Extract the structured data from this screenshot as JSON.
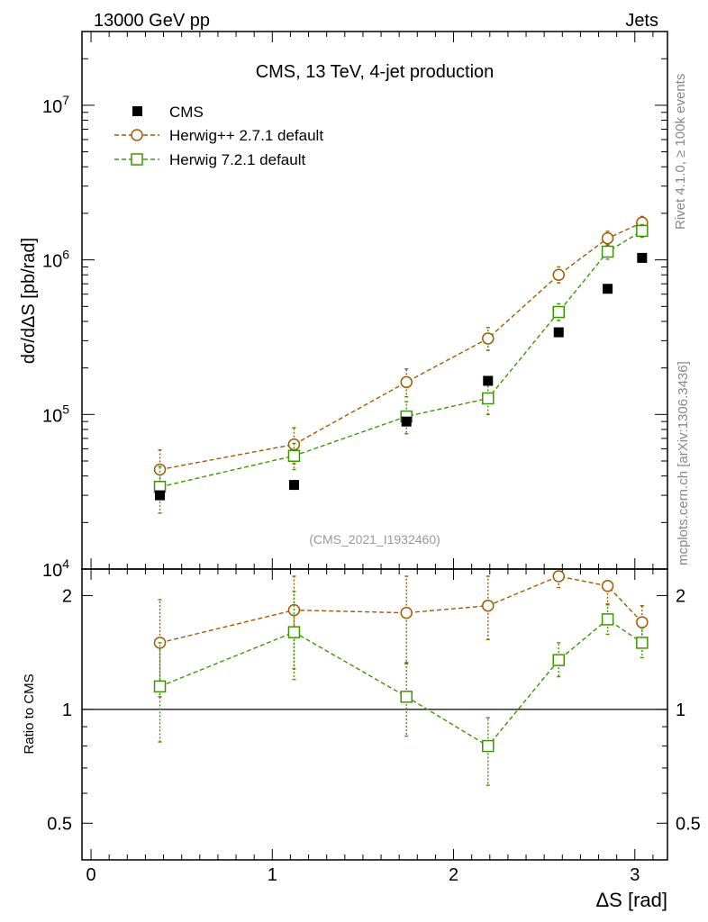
{
  "header": {
    "left": "13000 GeV pp",
    "right": "Jets"
  },
  "side_labels": {
    "rivet": "Rivet 4.1.0, ≥ 100k events",
    "mcplots": "mcplots.cern.ch [arXiv:1306.3436]"
  },
  "colors": {
    "cms": "#000000",
    "herwig_pp": "#a05a00",
    "herwig7": "#3c9600",
    "axis": "#000000",
    "watermark": "#999999",
    "side_text": "#888888"
  },
  "chart_data": [
    {
      "type": "line",
      "panel": "main",
      "title": "CMS, 13 TeV, 4-jet production",
      "watermark": "(CMS_2021_I1932460)",
      "xlabel": "",
      "ylabel": "dσ/dΔS [pb/rad]",
      "xlim": [
        -0.05,
        3.18
      ],
      "ylim": [
        10000,
        30000000
      ],
      "yscale": "log",
      "x_ticks": [
        "0",
        "1",
        "2",
        "3"
      ],
      "y_tick_labels": [
        {
          "value": 10000,
          "base": "10",
          "exp": "4"
        },
        {
          "value": 100000,
          "base": "10",
          "exp": "5"
        },
        {
          "value": 1000000,
          "base": "10",
          "exp": "6"
        },
        {
          "value": 10000000,
          "base": "10",
          "exp": "7"
        }
      ],
      "legend": [
        "CMS",
        "Herwig++ 2.7.1 default",
        "Herwig 7.2.1 default"
      ],
      "legend_position": "top-left",
      "series": [
        {
          "name": "CMS",
          "marker": "filled-square",
          "x": [
            0.38,
            1.12,
            1.74,
            2.19,
            2.58,
            2.85,
            3.04
          ],
          "y": [
            30000,
            35000,
            90000,
            165000,
            340000,
            650000,
            1030000
          ]
        },
        {
          "name": "Herwig++ 2.7.1 default",
          "marker": "open-circle",
          "x": [
            0.38,
            1.12,
            1.74,
            2.19,
            2.58,
            2.85,
            3.04
          ],
          "y": [
            44000,
            64000,
            162000,
            310000,
            800000,
            1380000,
            1740000
          ],
          "yerr_lo": [
            14000,
            16000,
            32000,
            50000,
            90000,
            140000,
            160000
          ],
          "yerr_hi": [
            15000,
            18000,
            35000,
            55000,
            100000,
            150000,
            170000
          ]
        },
        {
          "name": "Herwig 7.2.1 default",
          "marker": "open-square",
          "x": [
            0.38,
            1.12,
            1.74,
            2.19,
            2.58,
            2.85,
            3.04
          ],
          "y": [
            34000,
            54000,
            97000,
            127000,
            460000,
            1130000,
            1540000
          ],
          "yerr_lo": [
            11000,
            10000,
            22000,
            27000,
            55000,
            120000,
            140000
          ],
          "yerr_hi": [
            12000,
            11000,
            24000,
            28000,
            60000,
            130000,
            150000
          ]
        }
      ]
    },
    {
      "type": "line",
      "panel": "ratio",
      "xlabel": "ΔS [rad]",
      "ylabel": "Ratio to CMS",
      "xlim": [
        -0.05,
        3.18
      ],
      "ylim": [
        0.4,
        2.35
      ],
      "yscale": "log",
      "x_ticks": [
        "0",
        "1",
        "2",
        "3"
      ],
      "y_ticks": [
        "0.5",
        "1",
        "2"
      ],
      "reference_line": 1,
      "series": [
        {
          "name": "Herwig++ 2.7.1 default",
          "marker": "open-circle",
          "x": [
            0.38,
            1.12,
            1.74,
            2.19,
            2.58,
            2.85,
            3.04
          ],
          "y": [
            1.5,
            1.83,
            1.8,
            1.88,
            2.35,
            2.12,
            1.7
          ],
          "yerr_lo": [
            0.42,
            0.55,
            0.48,
            0.35,
            0.25,
            0.22,
            0.17
          ],
          "yerr_hi": [
            0.45,
            0.55,
            0.48,
            0.4,
            0.0,
            0.0,
            0.18
          ]
        },
        {
          "name": "Herwig 7.2.1 default",
          "marker": "open-square",
          "x": [
            0.38,
            1.12,
            1.74,
            2.19,
            2.58,
            2.85,
            3.04
          ],
          "y": [
            1.15,
            1.6,
            1.08,
            0.8,
            1.35,
            1.73,
            1.5
          ],
          "yerr_lo": [
            0.33,
            0.4,
            0.23,
            0.17,
            0.13,
            0.15,
            0.13
          ],
          "yerr_hi": [
            0.35,
            0.45,
            0.25,
            0.15,
            0.15,
            0.16,
            0.14
          ]
        }
      ]
    }
  ]
}
